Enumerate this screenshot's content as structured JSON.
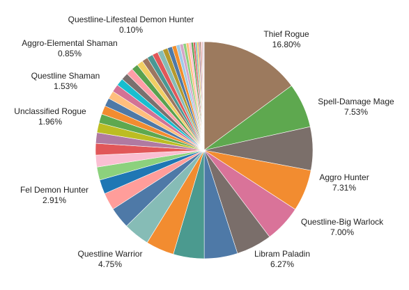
{
  "chart_data": {
    "type": "pie",
    "start_angle": "12 o'clock, clockwise",
    "labels": [
      "Thief Rogue",
      "Spell-Damage Mage",
      "Aggro Hunter",
      "Questline-Big Warlock",
      "Libram Paladin",
      "",
      "",
      "",
      "Questline Warrior",
      "",
      "",
      "Fel Demon Hunter",
      "",
      "",
      "",
      "Unclassified Rogue",
      "",
      "",
      "Questline Shaman",
      "",
      "",
      "",
      "",
      "",
      "",
      "",
      "",
      "",
      "",
      "",
      "",
      "",
      "Aggro-Elemental Shaman",
      "",
      "",
      "",
      "",
      "",
      "",
      "",
      "",
      "",
      "",
      "",
      "",
      "",
      "",
      "",
      "",
      "Questline-Lifesteal Demon Hunter"
    ],
    "values": [
      16.8,
      7.53,
      7.31,
      7.0,
      6.27,
      6.0,
      5.6,
      5.2,
      4.75,
      4.4,
      3.6,
      2.91,
      2.4,
      2.2,
      2.0,
      1.96,
      1.8,
      1.65,
      1.53,
      1.45,
      1.4,
      1.35,
      1.3,
      1.25,
      1.2,
      1.15,
      1.1,
      1.05,
      1.0,
      0.97,
      0.95,
      0.92,
      0.85,
      0.8,
      0.7,
      0.62,
      0.56,
      0.5,
      0.45,
      0.4,
      0.36,
      0.32,
      0.28,
      0.25,
      0.22,
      0.2,
      0.17,
      0.15,
      0.12,
      0.1
    ],
    "value_labels": [
      "16.80%",
      "7.53%",
      "7.31%",
      "7.00%",
      "6.27%",
      "",
      "",
      "",
      "4.75%",
      "",
      "",
      "2.91%",
      "",
      "",
      "",
      "1.96%",
      "",
      "",
      "1.53%",
      "",
      "",
      "",
      "",
      "",
      "",
      "",
      "",
      "",
      "",
      "",
      "",
      "",
      "0.85%",
      "",
      "",
      "",
      "",
      "",
      "",
      "",
      "",
      "",
      "",
      "",
      "",
      "",
      "",
      "",
      "",
      "0.10%"
    ],
    "colors": [
      "#9c7a5e",
      "#5ea84f",
      "#7b6f6a",
      "#f28c30",
      "#d97399",
      "#7a6e6a",
      "#4e79a7",
      "#4b9a8f",
      "#f28c30",
      "#86bcb6",
      "#4e79a7",
      "#ff9d9a",
      "#1f77b4",
      "#8cd17d",
      "#fabfd2",
      "#e15759",
      "#b07aa1",
      "#bcbd22",
      "#5ea84f",
      "#f28c30",
      "#4e79a7",
      "#ffbe7d",
      "#d37295",
      "#17becf",
      "#79706e",
      "#ff9da7",
      "#59a14f",
      "#f1ce63",
      "#9d7660",
      "#499894",
      "#e15759",
      "#86bcb6",
      "#b6992d",
      "#4e79a7",
      "#f28e2b",
      "#a0cbe8",
      "#d4a6c8",
      "#8cd17d",
      "#ffbe7d",
      "#fabfd2",
      "#59a14f",
      "#e15759",
      "#76b7b2",
      "#edc948",
      "#b07aa1",
      "#9c755f",
      "#ff9da7",
      "#bab0ac",
      "#d37295",
      "#a0cbe8"
    ],
    "legend": "none (slice labels outside the pie)"
  }
}
